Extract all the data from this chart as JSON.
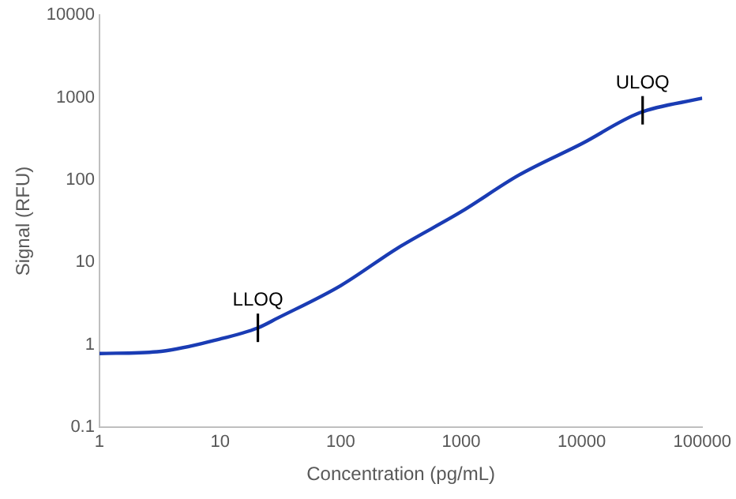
{
  "chart_data": {
    "type": "line",
    "xlabel": "Concentration (pg/mL)",
    "ylabel": "Signal (RFU)",
    "log": "xy",
    "grid": false,
    "legend": false,
    "marker": "none",
    "line_style": "solid",
    "xlim": [
      1,
      100000
    ],
    "xticks": [
      1,
      10,
      100,
      1000,
      10000,
      100000
    ],
    "ylim": [
      0.1,
      10000
    ],
    "yticks": [
      0.1,
      1,
      10,
      100,
      1000,
      10000
    ],
    "series": [
      {
        "color": "#1a3cb4",
        "x": [
          1,
          3,
          10,
          20.6,
          30,
          100,
          300,
          1000,
          3000,
          10000,
          30000,
          100000
        ],
        "values": [
          0.78,
          0.82,
          1.17,
          1.6,
          2.1,
          5.2,
          15,
          41,
          114,
          275,
          650,
          980
        ]
      }
    ],
    "annotations": [
      {
        "text": "LLOQ",
        "x": 20.6,
        "y": 1.6
      },
      {
        "text": "ULOQ",
        "x": 32000,
        "y": 700
      }
    ]
  }
}
